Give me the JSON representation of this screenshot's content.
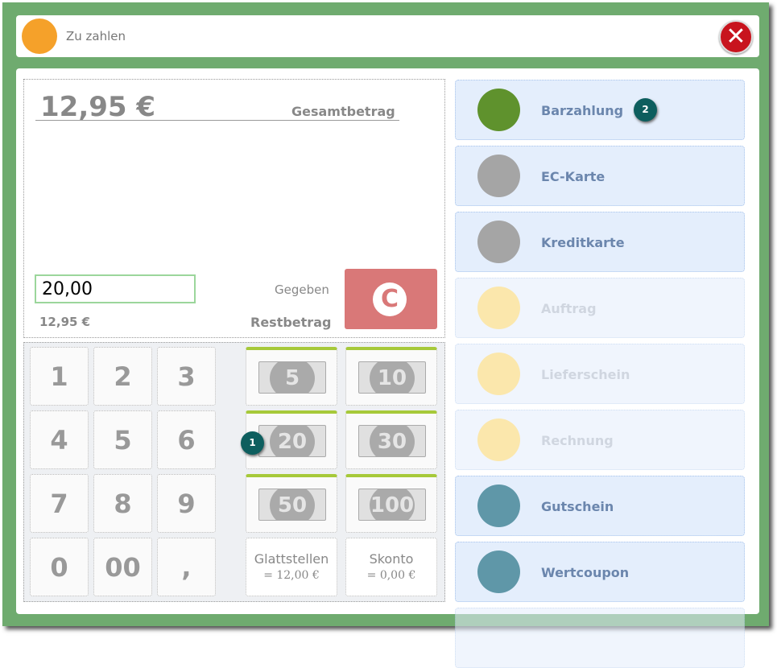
{
  "header": {
    "title": "Zu zahlen",
    "icon": "cash-payment-icon",
    "close_icon": "close-icon"
  },
  "summary": {
    "total": "12,95 €",
    "total_label": "Gesamtbetrag",
    "given_value": "20,00",
    "given_label": "Gegeben",
    "remaining": "12,95 €",
    "remaining_label": "Restbetrag",
    "clear_label": "C"
  },
  "keypad": [
    "1",
    "2",
    "3",
    "4",
    "5",
    "6",
    "7",
    "8",
    "9",
    "0",
    "00",
    ","
  ],
  "bills": [
    "5",
    "10",
    "20",
    "30",
    "50",
    "100"
  ],
  "round_off": {
    "label": "Glattstellen",
    "value": "= 12,00 €"
  },
  "discount": {
    "label": "Skonto",
    "value": "= 0,00 €"
  },
  "payment_methods": [
    {
      "label": "Barzahlung",
      "icon": "cash-register-icon",
      "color": "#5f922d",
      "enabled": true
    },
    {
      "label": "EC-Karte",
      "icon": "card-icon",
      "color": "#a5a5a5",
      "enabled": true
    },
    {
      "label": "Kreditkarte",
      "icon": "credit-card-icon",
      "color": "#a5a5a5",
      "enabled": true
    },
    {
      "label": "Auftrag",
      "icon": "order-icon",
      "color": "#f9d46a",
      "enabled": false
    },
    {
      "label": "Lieferschein",
      "icon": "delivery-note-icon",
      "color": "#f9d46a",
      "enabled": false
    },
    {
      "label": "Rechnung",
      "icon": "invoice-icon",
      "color": "#f9d46a",
      "enabled": false
    },
    {
      "label": "Gutschein",
      "icon": "voucher-icon",
      "color": "#5f97a8",
      "enabled": true
    },
    {
      "label": "Wertcoupon",
      "icon": "coupon-icon",
      "color": "#5f97a8",
      "enabled": true
    }
  ],
  "badges": [
    "1",
    "2"
  ],
  "colors": {
    "frame": "#6fab6f",
    "accent_bar": "#a6c93a",
    "clear": "#d97878",
    "badge": "#0d5e5e"
  }
}
